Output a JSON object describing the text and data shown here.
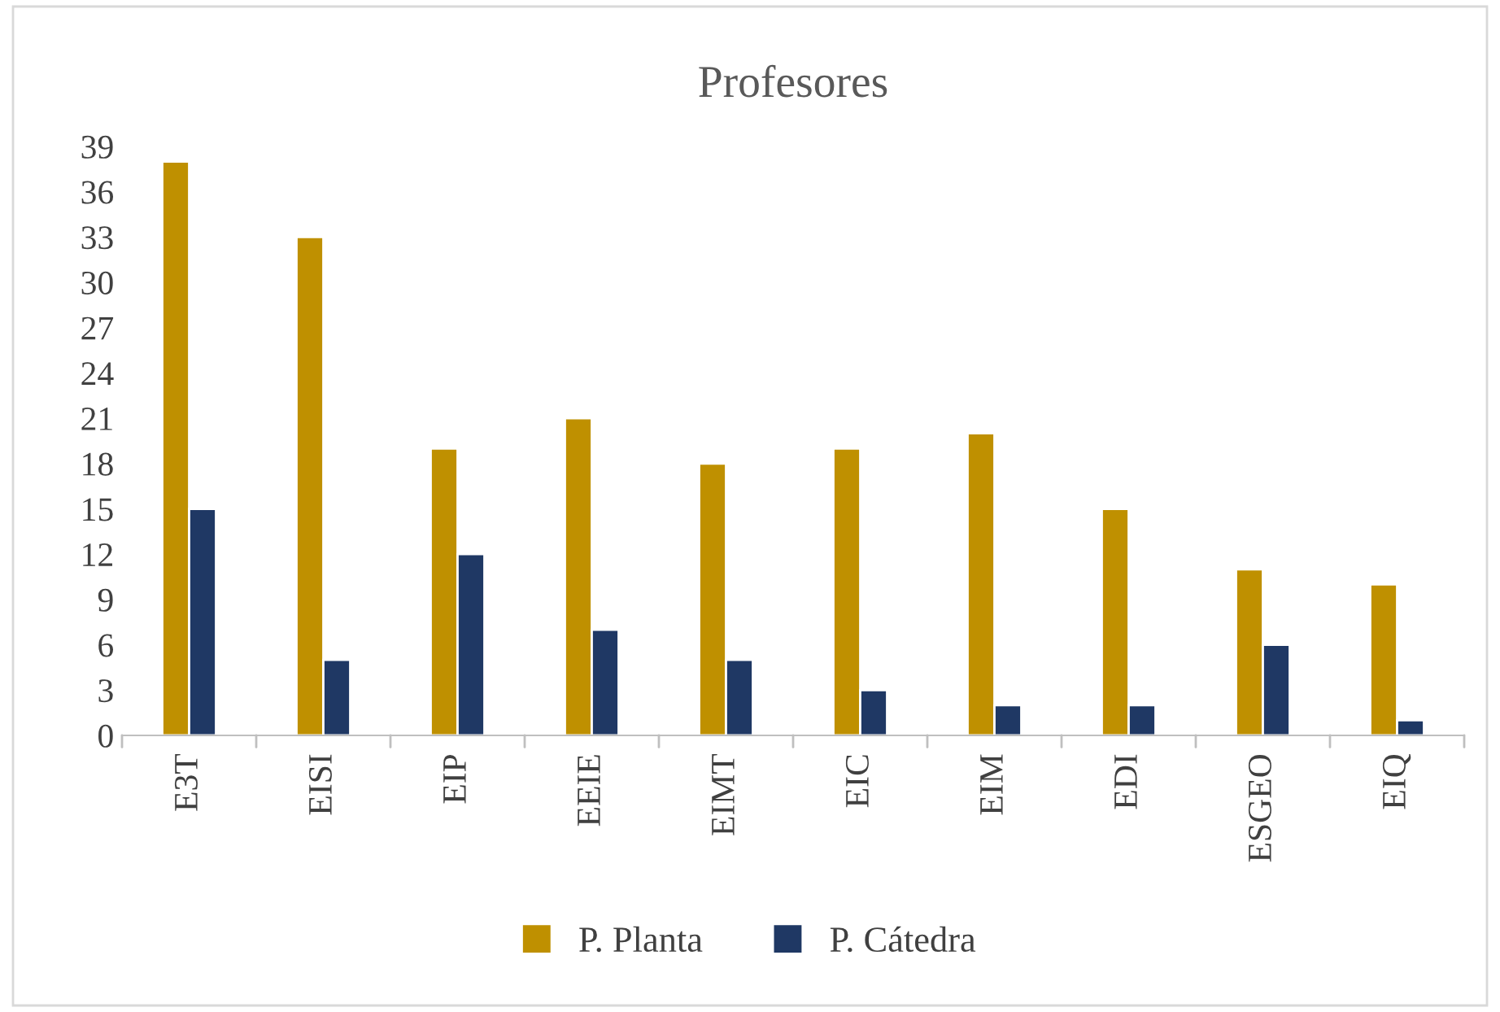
{
  "chart_data": {
    "type": "bar",
    "title": "Profesores",
    "categories": [
      "E3T",
      "EISI",
      "EIP",
      "EEIE",
      "EIMT",
      "EIC",
      "EIM",
      "EDI",
      "ESGEO",
      "EIQ"
    ],
    "series": [
      {
        "name": "P. Planta",
        "color": "#bf9000",
        "values": [
          38,
          33,
          19,
          21,
          18,
          19,
          20,
          15,
          11,
          10
        ]
      },
      {
        "name": "P. Cátedra",
        "color": "#1f3864",
        "values": [
          15,
          5,
          12,
          7,
          5,
          3,
          2,
          2,
          6,
          1
        ]
      }
    ],
    "ylim": [
      0,
      39
    ],
    "yticks": [
      0,
      3,
      6,
      9,
      12,
      15,
      18,
      21,
      24,
      27,
      30,
      33,
      36,
      39
    ],
    "grid": false,
    "legend": "bottom"
  }
}
